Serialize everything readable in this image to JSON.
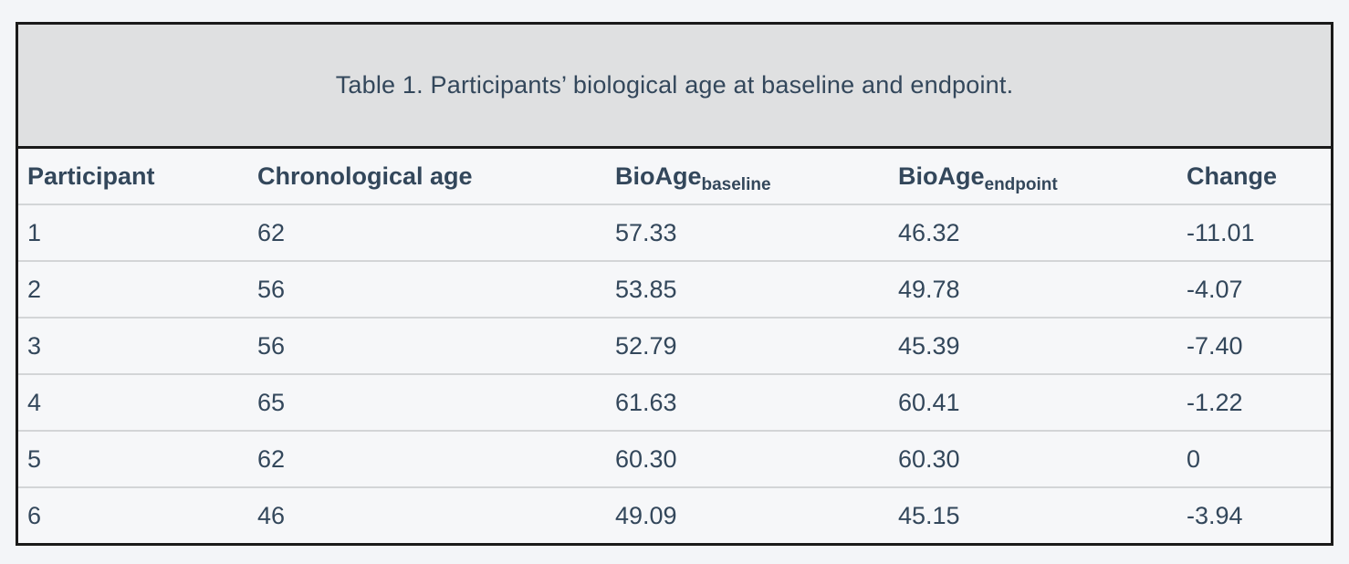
{
  "page": {
    "background": "#f3f5f8"
  },
  "table": {
    "caption": "Table 1. Participants’ biological age at baseline and endpoint.",
    "columns": [
      {
        "label": "Participant",
        "sub": ""
      },
      {
        "label": "Chronological age",
        "sub": ""
      },
      {
        "label": "BioAge",
        "sub": "baseline"
      },
      {
        "label": "BioAge",
        "sub": "endpoint"
      },
      {
        "label": "Change",
        "sub": ""
      }
    ],
    "rows": [
      [
        "1",
        "62",
        "57.33",
        "46.32",
        "-11.01"
      ],
      [
        "2",
        "56",
        "53.85",
        "49.78",
        "-4.07"
      ],
      [
        "3",
        "56",
        "52.79",
        "45.39",
        "-7.40"
      ],
      [
        "4",
        "65",
        "61.63",
        "60.41",
        "-1.22"
      ],
      [
        "5",
        "62",
        "60.30",
        "60.30",
        "0"
      ],
      [
        "6",
        "46",
        "49.09",
        "45.15",
        "-3.94"
      ]
    ],
    "colors": {
      "text": "#33475b",
      "caption_background": "#dfe0e1",
      "border": "#1a1a1a",
      "row_background": "#f6f7f9",
      "row_divider": "#d3d5d7"
    }
  },
  "chart_data": {
    "type": "table",
    "title": "Table 1. Participants’ biological age at baseline and endpoint.",
    "columns": [
      "Participant",
      "Chronological age",
      "BioAge_baseline",
      "BioAge_endpoint",
      "Change"
    ],
    "rows": [
      [
        1,
        62,
        57.33,
        46.32,
        -11.01
      ],
      [
        2,
        56,
        53.85,
        49.78,
        -4.07
      ],
      [
        3,
        56,
        52.79,
        45.39,
        -7.4
      ],
      [
        4,
        65,
        61.63,
        60.41,
        -1.22
      ],
      [
        5,
        62,
        60.3,
        60.3,
        0
      ],
      [
        6,
        46,
        49.09,
        45.15,
        -3.94
      ]
    ]
  }
}
